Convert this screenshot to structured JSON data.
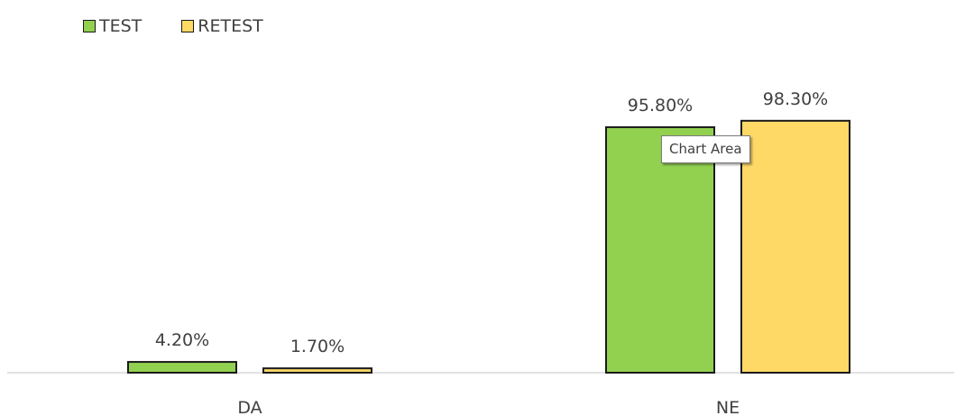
{
  "chart_data": {
    "type": "bar",
    "categories": [
      "DA",
      "NE"
    ],
    "series": [
      {
        "name": "TEST",
        "values": [
          4.2,
          95.8
        ],
        "labels": [
          "4.20%",
          "95.80%"
        ],
        "color": "#92d050"
      },
      {
        "name": "RETEST",
        "values": [
          1.7,
          98.3
        ],
        "labels": [
          "1.70%",
          "98.30%"
        ],
        "color": "#ffd966"
      }
    ],
    "ylim": [
      0,
      100
    ],
    "grid": false,
    "legend_position": "top-left"
  },
  "tooltip": {
    "text": "Chart Area"
  }
}
